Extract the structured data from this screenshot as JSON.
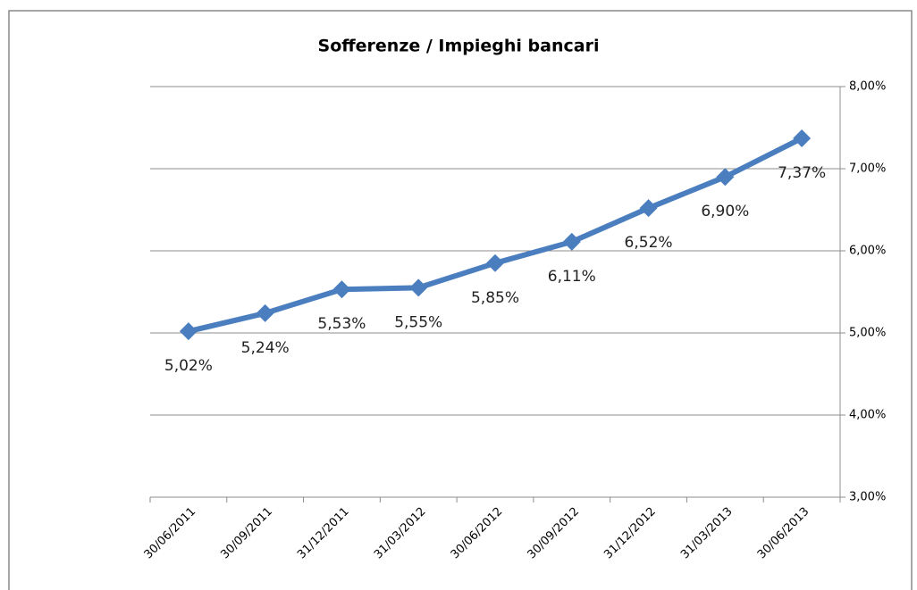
{
  "chart_data": {
    "type": "line",
    "title": "Sofferenze / Impieghi bancari",
    "categories": [
      "30/06/2011",
      "30/09/2011",
      "31/12/2011",
      "31/03/2012",
      "30/06/2012",
      "30/09/2012",
      "31/12/2012",
      "31/03/2013",
      "30/06/2013"
    ],
    "series": [
      {
        "name": "Sofferenze / Impieghi bancari",
        "color": "#4a7ebf",
        "values": [
          5.02,
          5.24,
          5.53,
          5.55,
          5.85,
          6.11,
          6.52,
          6.9,
          7.37
        ],
        "value_labels": [
          "5,02%",
          "5,24%",
          "5,53%",
          "5,55%",
          "5,85%",
          "6,11%",
          "6,52%",
          "6,90%",
          "7,37%"
        ]
      }
    ],
    "ylim": [
      3,
      8
    ],
    "yticks": [
      {
        "value": 3,
        "label": "3,00%"
      },
      {
        "value": 4,
        "label": "4,00%"
      },
      {
        "value": 5,
        "label": "5,00%"
      },
      {
        "value": 6,
        "label": "6,00%"
      },
      {
        "value": 7,
        "label": "7,00%"
      },
      {
        "value": 8,
        "label": "8,00%"
      }
    ],
    "grid": true,
    "yaxis_side": "right"
  }
}
